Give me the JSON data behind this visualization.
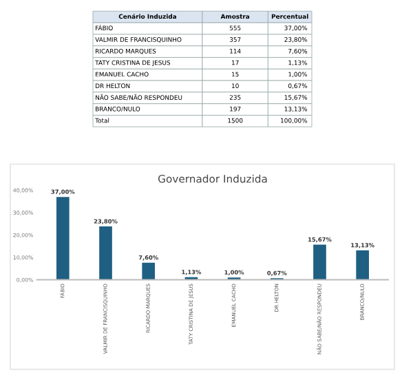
{
  "chart_data": [
    {
      "type": "other",
      "legend_title": "Cenário Induzida",
      "categories": [
        "FÁBIO",
        "VALMIR DE FRANCISQUINHO",
        "RICARDO MARQUES",
        "TATY CRISTINA DE JESUS",
        "EMANUEL CACHO",
        "DR HELTON",
        "NÃO SABE/NÃO RESPONDEU",
        "BRANCO/NULO",
        "Total"
      ],
      "series": [
        {
          "name": "Amostra",
          "values": [
            555,
            357,
            114,
            17,
            15,
            10,
            235,
            197,
            1500
          ],
          "data_labels": true
        },
        {
          "name": "Percentual",
          "values": [
            37.0,
            23.8,
            7.6,
            1.13,
            1.0,
            0.67,
            15.67,
            13.13,
            100.0
          ],
          "value_labels": [
            "37,00%",
            "23,80%",
            "7,60%",
            "1,13%",
            "1,00%",
            "0,67%",
            "15,67%",
            "13,13%",
            "100,00%"
          ]
        }
      ]
    },
    {
      "type": "bar",
      "title": "Governador Induzida",
      "categories": [
        "FÁBIO",
        "VALMIR DE FRANCISQUINHO",
        "RICARDO MARQUES",
        "TATY CRISTINA DE JESUS",
        "EMANUEL CACHO",
        "DR HELTON",
        "NÃO SABE/NÃO RESPONDEU",
        "BRANCO/NULO"
      ],
      "values": [
        37.0,
        23.8,
        7.6,
        1.13,
        1.0,
        0.67,
        15.67,
        13.13
      ],
      "value_labels": [
        "37,00%",
        "23,80%",
        "7,60%",
        "1,13%",
        "1,00%",
        "0,67%",
        "15,67%",
        "13,13%"
      ],
      "color": "#1f5f82",
      "ylim": [
        0,
        40
      ],
      "yticks": [
        {
          "value": 0,
          "label": "0,00%"
        },
        {
          "value": 10,
          "label": "10,00%"
        },
        {
          "value": 20,
          "label": "20,00%"
        },
        {
          "value": 30,
          "label": "30,00%"
        },
        {
          "value": 40,
          "label": "40,00%"
        }
      ],
      "grid": false,
      "legend": false
    }
  ]
}
